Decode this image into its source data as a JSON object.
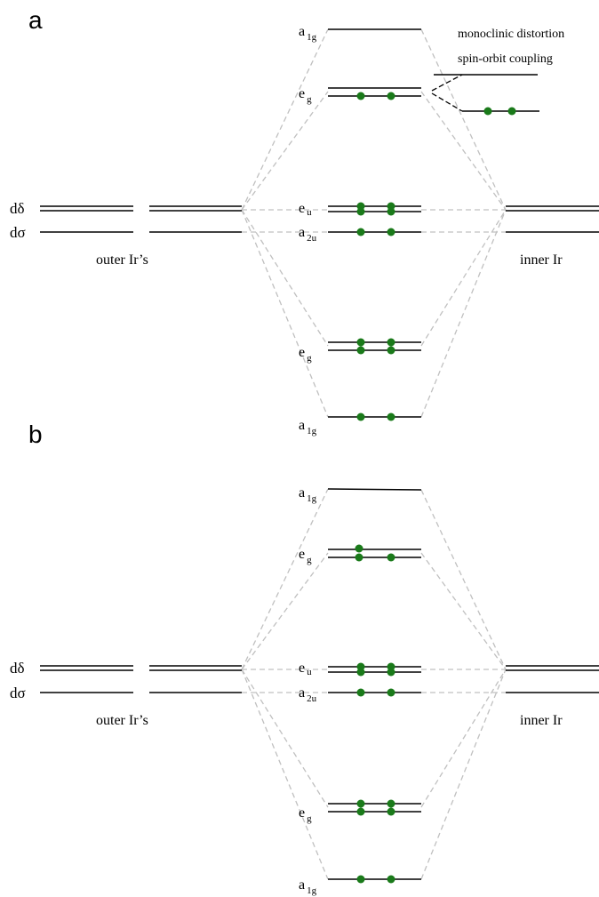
{
  "colors": {
    "level": "#000000",
    "connector": "#c0c0c0",
    "electron": "#1a7a1a"
  },
  "panels": [
    {
      "panel_label": "a",
      "left_labels": {
        "d_delta": "dδ",
        "d_sigma": "dσ",
        "group": "outer Ir’s"
      },
      "right_label": "inner Ir",
      "mo_labels": [
        {
          "base": "a",
          "sub": "1g"
        },
        {
          "base": "e",
          "sub": "g"
        },
        {
          "base": "e",
          "sub": "u"
        },
        {
          "base": "a",
          "sub": "2u"
        },
        {
          "base": "e",
          "sub": "g"
        },
        {
          "base": "a",
          "sub": "1g"
        }
      ],
      "annotations": [
        "monoclinic distortion",
        "spin-orbit coupling"
      ]
    },
    {
      "panel_label": "b",
      "left_labels": {
        "d_delta": "dδ",
        "d_sigma": "dσ",
        "group": "outer Ir’s"
      },
      "right_label": "inner Ir",
      "mo_labels": [
        {
          "base": "a",
          "sub": "1g"
        },
        {
          "base": "e",
          "sub": "g"
        },
        {
          "base": "e",
          "sub": "u"
        },
        {
          "base": "a",
          "sub": "2u"
        },
        {
          "base": "e",
          "sub": "g"
        },
        {
          "base": "a",
          "sub": "1g"
        }
      ]
    }
  ]
}
